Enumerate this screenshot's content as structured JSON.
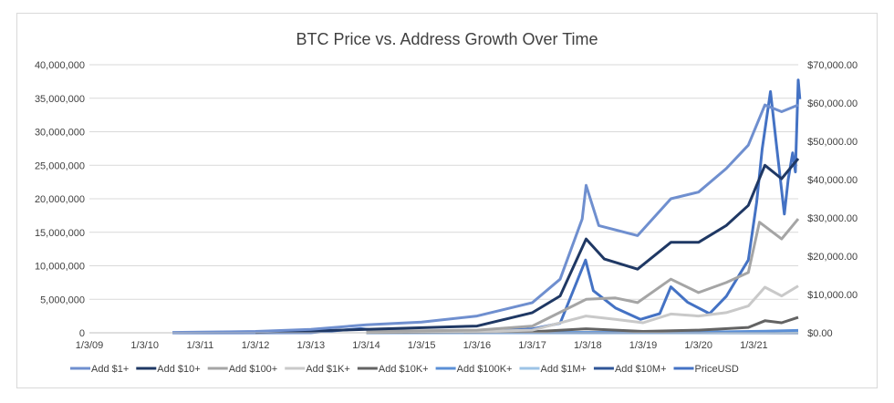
{
  "chart_data": {
    "type": "line",
    "title": "BTC Price vs. Address Growth Over Time",
    "x_tick_labels": [
      "1/3/09",
      "1/3/10",
      "1/3/11",
      "1/3/12",
      "1/3/13",
      "1/3/14",
      "1/3/15",
      "1/3/16",
      "1/3/17",
      "1/3/18",
      "1/3/19",
      "1/3/20",
      "1/3/21"
    ],
    "x_range_years": [
      2009.0,
      2022.0
    ],
    "y_left": {
      "ylim": [
        0,
        40000000
      ],
      "tick_labels": [
        "0",
        "5,000,000",
        "10,000,000",
        "15,000,000",
        "20,000,000",
        "25,000,000",
        "30,000,000",
        "35,000,000",
        "40,000,000"
      ]
    },
    "y_right": {
      "ylim": [
        0,
        70000
      ],
      "tick_labels": [
        "$0.00",
        "$10,000.00",
        "$20,000.00",
        "$30,000.00",
        "$40,000.00",
        "$50,000.00",
        "$60,000.00",
        "$70,000.00"
      ]
    },
    "grid": true,
    "legend_position": "bottom",
    "series": [
      {
        "name": "Add $1+",
        "axis": "left",
        "color": "#6f8fcf",
        "x": [
          2010.5,
          2011,
          2012,
          2013,
          2014,
          2015,
          2016,
          2017,
          2017.5,
          2017.9,
          2017.97,
          2018.2,
          2018.9,
          2019.5,
          2020,
          2020.5,
          2020.9,
          2021.2,
          2021.5,
          2021.8
        ],
        "y": [
          50000,
          100000,
          200000,
          500000,
          1200000,
          1600000,
          2500000,
          4500000,
          8000000,
          17000000,
          22000000,
          16000000,
          14500000,
          20000000,
          21000000,
          24500000,
          28000000,
          34000000,
          33000000,
          34000000
        ]
      },
      {
        "name": "Add $10+",
        "axis": "left",
        "color": "#1f3864",
        "x": [
          2012,
          2014,
          2016,
          2017,
          2017.5,
          2017.97,
          2018.3,
          2018.9,
          2019.5,
          2020,
          2020.5,
          2020.9,
          2021.2,
          2021.5,
          2021.8
        ],
        "y": [
          50000,
          500000,
          1000000,
          3000000,
          5500000,
          14000000,
          11000000,
          9500000,
          13500000,
          13500000,
          16000000,
          19000000,
          25000000,
          23000000,
          26000000
        ]
      },
      {
        "name": "Add $100+",
        "axis": "left",
        "color": "#a5a5a5",
        "x": [
          2014,
          2016,
          2017,
          2017.97,
          2018.5,
          2018.9,
          2019.5,
          2020,
          2020.5,
          2020.9,
          2021.1,
          2021.5,
          2021.8
        ],
        "y": [
          200000,
          400000,
          1000000,
          5000000,
          5200000,
          4500000,
          8000000,
          6000000,
          7500000,
          9000000,
          16500000,
          14000000,
          17000000
        ]
      },
      {
        "name": "Add $1K+",
        "axis": "left",
        "color": "#c9c9c9",
        "x": [
          2014,
          2016,
          2017,
          2017.97,
          2018.5,
          2019,
          2019.5,
          2020,
          2020.5,
          2020.9,
          2021.2,
          2021.5,
          2021.8
        ],
        "y": [
          100000,
          200000,
          400000,
          2500000,
          2000000,
          1500000,
          2800000,
          2500000,
          3000000,
          4000000,
          6800000,
          5500000,
          7000000
        ]
      },
      {
        "name": "Add $10K+",
        "axis": "left",
        "color": "#636363",
        "x": [
          2014,
          2017,
          2017.97,
          2019,
          2020,
          2020.9,
          2021.2,
          2021.5,
          2021.8
        ],
        "y": [
          50000,
          150000,
          600000,
          200000,
          400000,
          800000,
          1800000,
          1500000,
          2300000
        ]
      },
      {
        "name": "Add $100K+",
        "axis": "left",
        "color": "#5b8fd6",
        "x": [
          2014,
          2018,
          2020,
          2021.2,
          2021.8
        ],
        "y": [
          20000,
          60000,
          80000,
          250000,
          350000
        ]
      },
      {
        "name": "Add $1M+",
        "axis": "left",
        "color": "#9dc3e6",
        "x": [
          2014,
          2018,
          2020,
          2021.2,
          2021.8
        ],
        "y": [
          5000,
          15000,
          20000,
          60000,
          80000
        ]
      },
      {
        "name": "Add $10M+",
        "axis": "left",
        "color": "#2f5597",
        "x": [
          2014,
          2018,
          2020,
          2021.2,
          2021.8
        ],
        "y": [
          1000,
          3000,
          5000,
          15000,
          20000
        ]
      },
      {
        "name": "PriceUSD",
        "axis": "right",
        "color": "#4472c4",
        "x": [
          2010.5,
          2013.0,
          2013.9,
          2014.2,
          2015,
          2016,
          2016.5,
          2017,
          2017.5,
          2017.96,
          2018.1,
          2018.5,
          2018.95,
          2019.3,
          2019.5,
          2019.8,
          2020.2,
          2020.5,
          2020.9,
          2021.05,
          2021.15,
          2021.3,
          2021.4,
          2021.55,
          2021.62,
          2021.7,
          2021.75,
          2021.8,
          2021.83
        ],
        "y": [
          0,
          15,
          1100,
          600,
          300,
          430,
          650,
          1000,
          2500,
          19000,
          11000,
          6500,
          3500,
          5000,
          12000,
          8000,
          5000,
          9500,
          19000,
          34000,
          48000,
          63000,
          50000,
          31000,
          40000,
          47000,
          42000,
          66000,
          61000
        ]
      }
    ]
  }
}
